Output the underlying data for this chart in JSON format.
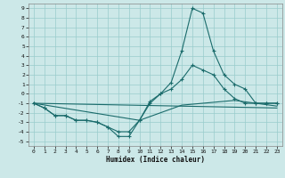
{
  "xlabel": "Humidex (Indice chaleur)",
  "bg_color": "#cce8e8",
  "grid_color": "#99cccc",
  "line_color": "#1a6b6b",
  "xlim": [
    -0.5,
    23.5
  ],
  "ylim": [
    -5.5,
    9.5
  ],
  "xticks": [
    0,
    1,
    2,
    3,
    4,
    5,
    6,
    7,
    8,
    9,
    10,
    11,
    12,
    13,
    14,
    15,
    16,
    17,
    18,
    19,
    20,
    21,
    22,
    23
  ],
  "yticks": [
    -5,
    -4,
    -3,
    -2,
    -1,
    0,
    1,
    2,
    3,
    4,
    5,
    6,
    7,
    8,
    9
  ],
  "line1_x": [
    0,
    1,
    2,
    3,
    4,
    5,
    6,
    7,
    8,
    9,
    10,
    11,
    12,
    13,
    14,
    15,
    16,
    17,
    18,
    19,
    20,
    21,
    22,
    23
  ],
  "line1_y": [
    -1,
    -1.5,
    -2.3,
    -2.3,
    -2.8,
    -2.8,
    -3,
    -3.5,
    -4.5,
    -4.5,
    -2.8,
    -1,
    0,
    1.2,
    4.5,
    9,
    8.5,
    4.5,
    2,
    1,
    0.5,
    -1,
    -1,
    -1
  ],
  "line2_x": [
    0,
    1,
    2,
    3,
    4,
    5,
    6,
    7,
    8,
    9,
    10,
    11,
    12,
    13,
    14,
    15,
    16,
    17,
    18,
    19,
    20,
    21,
    22,
    23
  ],
  "line2_y": [
    -1,
    -1.5,
    -2.3,
    -2.3,
    -2.8,
    -2.8,
    -3,
    -3.5,
    -4,
    -4,
    -2.8,
    -0.8,
    0,
    0.5,
    1.5,
    3,
    2.5,
    2,
    0.5,
    -0.5,
    -1,
    -1,
    -1,
    -1
  ],
  "line3_x": [
    0,
    23
  ],
  "line3_y": [
    -1,
    -1.5
  ],
  "line4_x": [
    0,
    10,
    14,
    19,
    23
  ],
  "line4_y": [
    -1,
    -2.8,
    -1.2,
    -0.7,
    -1.3
  ]
}
